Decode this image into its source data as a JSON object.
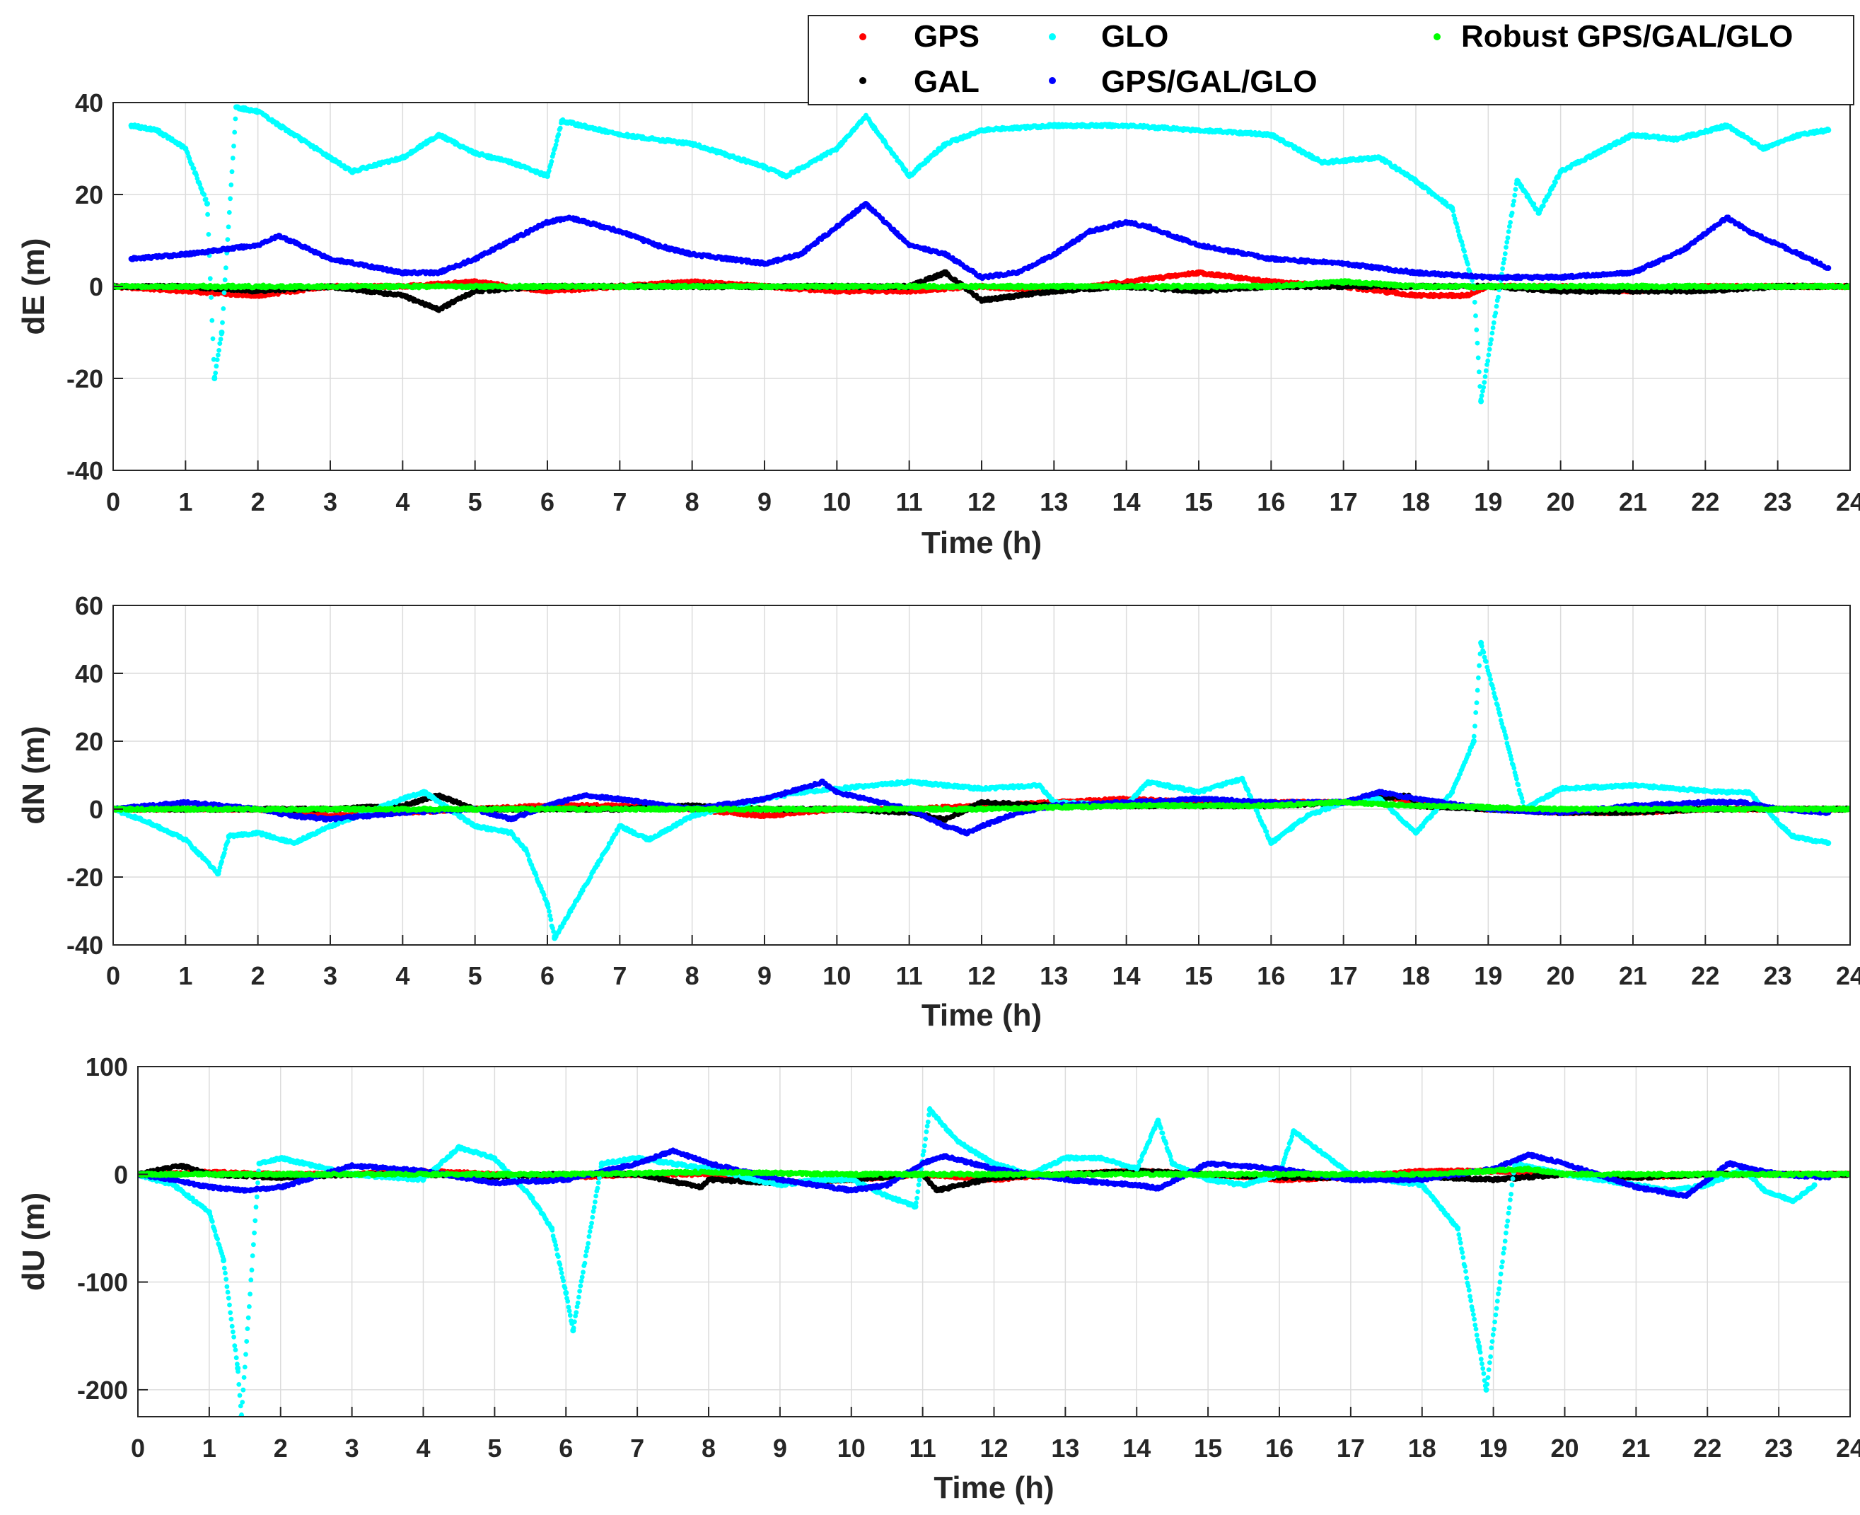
{
  "legend": {
    "items": [
      {
        "label": "GPS",
        "color": "#ff0000"
      },
      {
        "label": "GLO",
        "color": "#00ffff"
      },
      {
        "label": "Robust GPS/GAL/GLO",
        "color": "#00ff00"
      },
      {
        "label": "GAL",
        "color": "#000000"
      },
      {
        "label": "GPS/GAL/GLO",
        "color": "#0000ff"
      }
    ]
  },
  "chart_data": [
    {
      "type": "scatter",
      "title": "",
      "xlabel": "Time (h)",
      "ylabel": "dE (m)",
      "xlim": [
        0,
        24
      ],
      "ylim": [
        -40,
        40
      ],
      "xticks": [
        "0",
        "1",
        "2",
        "3",
        "4",
        "5",
        "6",
        "7",
        "8",
        "9",
        "10",
        "11",
        "12",
        "13",
        "14",
        "15",
        "16",
        "17",
        "18",
        "19",
        "20",
        "21",
        "22",
        "23",
        "24"
      ],
      "yticks": [
        "-40",
        "-20",
        "0",
        "20",
        "40"
      ],
      "grid": true,
      "series": [
        {
          "name": "GPS",
          "color": "#ff0000",
          "x": [
            0,
            1,
            2,
            3,
            4,
            5,
            6,
            7,
            8,
            9,
            10,
            11,
            12,
            13,
            14,
            15,
            16,
            17,
            18,
            18.7,
            19,
            20,
            21,
            22,
            23,
            24
          ],
          "y": [
            0,
            -1,
            -2,
            0,
            0,
            1,
            -1,
            0,
            1,
            0,
            -1,
            -1,
            0,
            -1,
            1,
            3,
            1,
            0,
            -2,
            -2,
            0,
            0,
            -1,
            0,
            0,
            0
          ]
        },
        {
          "name": "GAL",
          "color": "#000000",
          "x": [
            0,
            1,
            2,
            3,
            4,
            4.5,
            5,
            6,
            7,
            8,
            9,
            10,
            11,
            11.5,
            12,
            13,
            14,
            15,
            16,
            17,
            18,
            19,
            20,
            21,
            22,
            23,
            24
          ],
          "y": [
            0,
            0,
            -1,
            0,
            -2,
            -5,
            -1,
            0,
            0,
            0,
            0,
            0,
            0,
            3,
            -3,
            -1,
            0,
            -1,
            0,
            0,
            0,
            0,
            -1,
            -1,
            -1,
            0,
            0
          ]
        },
        {
          "name": "GLO",
          "color": "#00ffff",
          "x": [
            0.25,
            0.6,
            1,
            1.3,
            1.4,
            1.5,
            1.7,
            2,
            2.5,
            3,
            3.3,
            4,
            4.5,
            5,
            5.5,
            6,
            6.2,
            7,
            8,
            9,
            9.3,
            10,
            10.4,
            11,
            11.5,
            12,
            13,
            14,
            15,
            16,
            16.7,
            17.5,
            18,
            18.5,
            18.8,
            18.9,
            19.4,
            19.7,
            20,
            21,
            21.6,
            22.3,
            22.8,
            23.3,
            23.7
          ],
          "y": [
            35,
            34,
            30,
            18,
            -20,
            -10,
            39,
            38,
            33,
            28,
            25,
            28,
            33,
            29,
            27,
            24,
            36,
            33,
            31,
            26,
            24,
            30,
            37,
            24,
            31,
            34,
            35,
            35,
            34,
            33,
            27,
            28,
            23,
            17,
            0,
            -25,
            23,
            16,
            25,
            33,
            32,
            35,
            30,
            33,
            34
          ]
        },
        {
          "name": "GPS/GAL/GLO",
          "color": "#0000ff",
          "x": [
            0.25,
            1,
            2,
            2.3,
            3,
            4,
            4.5,
            5,
            5.5,
            6,
            6.3,
            7,
            7.5,
            8,
            9,
            9.5,
            10,
            10.4,
            11,
            11.5,
            12,
            12.5,
            13,
            13.5,
            14,
            14.3,
            15,
            16,
            17,
            18,
            19,
            20,
            21,
            21.7,
            22.3,
            22.6,
            23.3,
            23.7
          ],
          "y": [
            6,
            7,
            9,
            11,
            6,
            3,
            3,
            6,
            10,
            14,
            15,
            12,
            9,
            7,
            5,
            7,
            13,
            18,
            9,
            7,
            2,
            3,
            7,
            12,
            14,
            13,
            9,
            6,
            5,
            3,
            2,
            2,
            3,
            8,
            15,
            12,
            7,
            4
          ]
        },
        {
          "name": "Robust GPS/GAL/GLO",
          "color": "#00ff00",
          "x": [
            0,
            2,
            4,
            6,
            8,
            10,
            12,
            14,
            16,
            17,
            18,
            20,
            22,
            24
          ],
          "y": [
            0,
            0,
            0,
            0,
            0,
            0,
            0,
            0,
            0,
            1,
            0,
            0,
            0,
            0
          ]
        }
      ]
    },
    {
      "type": "scatter",
      "title": "",
      "xlabel": "Time (h)",
      "ylabel": "dN (m)",
      "xlim": [
        0,
        24
      ],
      "ylim": [
        -40,
        60
      ],
      "xticks": [
        "0",
        "1",
        "2",
        "3",
        "4",
        "5",
        "6",
        "7",
        "8",
        "9",
        "10",
        "11",
        "12",
        "13",
        "14",
        "15",
        "16",
        "17",
        "18",
        "19",
        "20",
        "21",
        "22",
        "23",
        "24"
      ],
      "yticks": [
        "-40",
        "-20",
        "0",
        "20",
        "40",
        "60"
      ],
      "grid": true,
      "series": [
        {
          "name": "GPS",
          "color": "#ff0000",
          "x": [
            0,
            1,
            2,
            3,
            4,
            5,
            6,
            7,
            8,
            9,
            10,
            11,
            12,
            13,
            14,
            15,
            16,
            17,
            17.5,
            18,
            19,
            20,
            21,
            22,
            23,
            24
          ],
          "y": [
            0,
            0,
            0,
            -2,
            -1,
            0,
            1,
            1,
            0,
            -2,
            0,
            0,
            1,
            2,
            3,
            2,
            2,
            2,
            4,
            2,
            0,
            -1,
            -1,
            0,
            0,
            0
          ]
        },
        {
          "name": "GAL",
          "color": "#000000",
          "x": [
            0,
            1,
            2,
            3,
            4,
            4.5,
            5,
            6,
            7,
            8,
            9,
            10,
            11,
            11.5,
            12,
            13,
            14,
            15,
            16,
            17,
            17.9,
            18,
            19,
            20,
            21,
            22,
            23,
            24
          ],
          "y": [
            0,
            0,
            0,
            0,
            1,
            4,
            0,
            0,
            0,
            1,
            0,
            0,
            -1,
            -3,
            2,
            1,
            1,
            1,
            1,
            2,
            4,
            1,
            0,
            -1,
            -1,
            0,
            0,
            0
          ]
        },
        {
          "name": "GLO",
          "color": "#00ffff",
          "x": [
            0,
            0.5,
            1,
            1.45,
            1.6,
            2,
            2.5,
            3,
            4,
            4.3,
            5,
            5.5,
            5.7,
            6,
            6.1,
            7,
            7.4,
            8,
            9,
            9.5,
            10,
            11,
            12,
            12.8,
            13,
            14,
            14.3,
            15,
            15.6,
            16,
            16.5,
            17,
            17.5,
            18,
            18.5,
            18.8,
            18.9,
            19.5,
            20,
            21,
            21.6,
            22.3,
            22.6,
            23.2,
            23.7
          ],
          "y": [
            0,
            -4,
            -9,
            -19,
            -8,
            -7,
            -10,
            -5,
            3,
            5,
            -5,
            -7,
            -12,
            -28,
            -38,
            -5,
            -9,
            -2,
            3,
            5,
            6,
            8,
            6,
            7,
            2,
            1,
            8,
            5,
            9,
            -10,
            -2,
            2,
            3,
            -7,
            5,
            20,
            49,
            0,
            6,
            7,
            6,
            5,
            5,
            -8,
            -10
          ]
        },
        {
          "name": "GPS/GAL/GLO",
          "color": "#0000ff",
          "x": [
            0,
            0.5,
            1,
            2,
            2.5,
            3,
            4,
            5,
            5.5,
            6,
            6.5,
            7,
            8,
            9,
            9.5,
            9.8,
            10,
            11,
            11.5,
            11.8,
            12,
            12.5,
            13,
            14,
            15,
            16,
            17,
            17.5,
            18,
            19,
            20,
            21,
            22,
            22.5,
            23,
            23.7
          ],
          "y": [
            0,
            1,
            2,
            0,
            -2,
            -3,
            -1,
            0,
            -3,
            1,
            4,
            3,
            0,
            3,
            6,
            8,
            5,
            0,
            -5,
            -7,
            -5,
            -1,
            1,
            2,
            3,
            2,
            2,
            5,
            3,
            0,
            -1,
            1,
            2,
            2,
            0,
            -1
          ]
        },
        {
          "name": "Robust GPS/GAL/GLO",
          "color": "#00ff00",
          "x": [
            0,
            2,
            4,
            6,
            8,
            10,
            12,
            14,
            16,
            17,
            18,
            20,
            22,
            24
          ],
          "y": [
            0,
            0,
            0,
            0,
            0,
            0,
            0,
            1,
            1,
            2,
            1,
            0,
            0,
            0
          ]
        }
      ]
    },
    {
      "type": "scatter",
      "title": "",
      "xlabel": "Time (h)",
      "ylabel": "dU (m)",
      "xlim": [
        0,
        24
      ],
      "ylim": [
        -225,
        100
      ],
      "xticks": [
        "0",
        "1",
        "2",
        "3",
        "4",
        "5",
        "6",
        "7",
        "8",
        "9",
        "10",
        "11",
        "12",
        "13",
        "14",
        "15",
        "16",
        "17",
        "18",
        "19",
        "20",
        "21",
        "22",
        "23",
        "24"
      ],
      "yticks": [
        "-200",
        "-100",
        "0",
        "100"
      ],
      "grid": true,
      "series": [
        {
          "name": "GPS",
          "color": "#ff0000",
          "x": [
            0,
            1,
            2,
            3,
            4,
            5,
            6,
            7,
            8,
            9,
            10,
            11,
            12,
            13,
            14,
            15,
            16,
            17,
            18,
            19,
            20,
            21,
            22,
            23,
            24
          ],
          "y": [
            0,
            2,
            0,
            0,
            3,
            0,
            -3,
            0,
            0,
            -8,
            -5,
            0,
            -5,
            0,
            3,
            0,
            -5,
            -3,
            3,
            3,
            0,
            -3,
            0,
            0,
            0
          ]
        },
        {
          "name": "GAL",
          "color": "#000000",
          "x": [
            0,
            0.6,
            1,
            2,
            3,
            4,
            5,
            6,
            7,
            7.9,
            8,
            9,
            10,
            11,
            11.2,
            12,
            13,
            14,
            15,
            16,
            17,
            18,
            19,
            20,
            21,
            22,
            23,
            24
          ],
          "y": [
            0,
            8,
            0,
            -3,
            0,
            0,
            -2,
            0,
            0,
            -12,
            -5,
            -8,
            -5,
            0,
            -15,
            -3,
            0,
            3,
            0,
            -3,
            -3,
            -2,
            -5,
            0,
            -3,
            0,
            0,
            0
          ]
        },
        {
          "name": "GLO",
          "color": "#00ffff",
          "x": [
            0,
            0.5,
            1,
            1.2,
            1.4,
            1.45,
            1.7,
            2,
            3,
            4,
            4.5,
            5,
            5.5,
            5.8,
            6,
            6.1,
            6.5,
            7,
            7.5,
            8,
            9,
            9.5,
            10,
            10.5,
            10.9,
            11.1,
            11.5,
            12,
            12.5,
            13,
            13.5,
            14,
            14.3,
            14.5,
            15,
            15.5,
            16,
            16.2,
            16.5,
            17,
            18,
            18.5,
            18.8,
            18.9,
            19.3,
            20,
            21,
            21.5,
            22,
            22.5,
            22.8,
            23.2,
            23.5
          ],
          "y": [
            0,
            -10,
            -35,
            -80,
            -180,
            -225,
            10,
            15,
            0,
            -5,
            25,
            15,
            -20,
            -50,
            -110,
            -145,
            10,
            15,
            10,
            5,
            -10,
            -5,
            -5,
            -20,
            -30,
            60,
            30,
            10,
            0,
            15,
            15,
            5,
            50,
            10,
            -5,
            -10,
            0,
            40,
            25,
            0,
            -10,
            -50,
            -160,
            -200,
            10,
            0,
            -10,
            -15,
            -10,
            5,
            -15,
            -25,
            -10
          ]
        },
        {
          "name": "GPS/GAL/GLO",
          "color": "#0000ff",
          "x": [
            0,
            0.5,
            1,
            1.5,
            2,
            3,
            4,
            5,
            6,
            7,
            7.5,
            8,
            9,
            10,
            10.5,
            11,
            11.3,
            12,
            13,
            14,
            14.3,
            15,
            16,
            17,
            18,
            19,
            19.5,
            20,
            21,
            21.7,
            22.3,
            22.6,
            23,
            23.7
          ],
          "y": [
            0,
            -5,
            -12,
            -15,
            -12,
            8,
            3,
            -8,
            -5,
            10,
            22,
            10,
            -5,
            -15,
            -10,
            10,
            17,
            5,
            -5,
            -10,
            -13,
            10,
            5,
            -5,
            -5,
            5,
            18,
            10,
            -12,
            -20,
            10,
            5,
            0,
            -3
          ]
        },
        {
          "name": "Robust GPS/GAL/GLO",
          "color": "#00ff00",
          "x": [
            0,
            2,
            4,
            6,
            8,
            10,
            12,
            14,
            16,
            18,
            19.5,
            20,
            22,
            24
          ],
          "y": [
            0,
            0,
            0,
            0,
            2,
            0,
            0,
            0,
            0,
            0,
            5,
            0,
            0,
            0
          ]
        }
      ]
    }
  ]
}
